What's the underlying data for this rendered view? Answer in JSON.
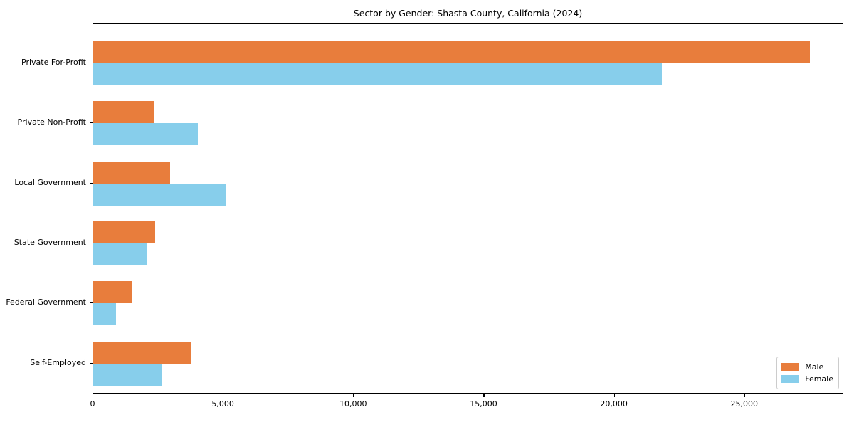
{
  "chart_data": {
    "type": "bar",
    "orientation": "horizontal",
    "title": "Sector by Gender: Shasta County, California (2024)",
    "categories": [
      "Private For-Profit",
      "Private Non-Profit",
      "Local Government",
      "State Government",
      "Federal Government",
      "Self-Employed"
    ],
    "series": [
      {
        "name": "Male",
        "color": "#E87D3C",
        "values": [
          27500,
          2330,
          2960,
          2370,
          1490,
          3780
        ]
      },
      {
        "name": "Female",
        "color": "#87CEEB",
        "values": [
          21800,
          4000,
          5100,
          2060,
          880,
          2630
        ]
      }
    ],
    "xlabel": "",
    "ylabel": "",
    "xlim": [
      0,
      28800
    ],
    "x_ticks": [
      0,
      5000,
      10000,
      15000,
      20000,
      25000
    ],
    "x_tick_labels": [
      "0",
      "5,000",
      "10,000",
      "15,000",
      "20,000",
      "25,000"
    ],
    "grid": false,
    "legend_position": "lower right"
  }
}
